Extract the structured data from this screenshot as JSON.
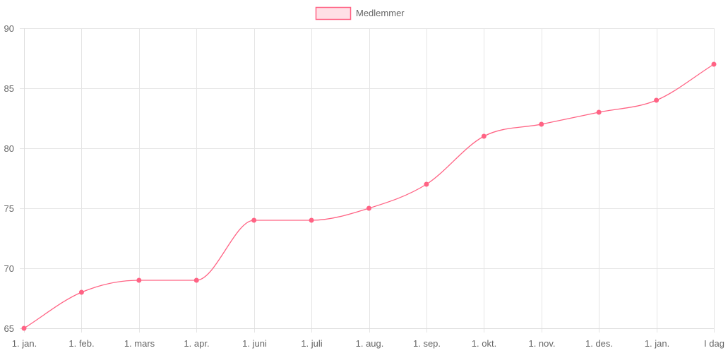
{
  "legend": {
    "label": "Medlemmer"
  },
  "colors": {
    "line": "#ff6384",
    "fill": "#ffe0e6",
    "grid": "#e5e5e5",
    "axis": "#dddddd",
    "text": "#666666"
  },
  "chart_data": {
    "type": "line",
    "categories": [
      "1. jan.",
      "1. feb.",
      "1. mars",
      "1. apr.",
      "1. juni",
      "1. juli",
      "1. aug.",
      "1. sep.",
      "1. okt.",
      "1. nov.",
      "1. des.",
      "1. jan.",
      "I dag"
    ],
    "series": [
      {
        "name": "Medlemmer",
        "values": [
          65,
          68,
          69,
          69,
          74,
          74,
          75,
          77,
          81,
          82,
          83,
          84,
          87
        ]
      }
    ],
    "ylim": [
      65,
      90
    ],
    "yticks": [
      65,
      70,
      75,
      80,
      85,
      90
    ],
    "title": "",
    "xlabel": "",
    "ylabel": "",
    "grid": true,
    "legend_position": "top-center",
    "curve": "smooth"
  }
}
